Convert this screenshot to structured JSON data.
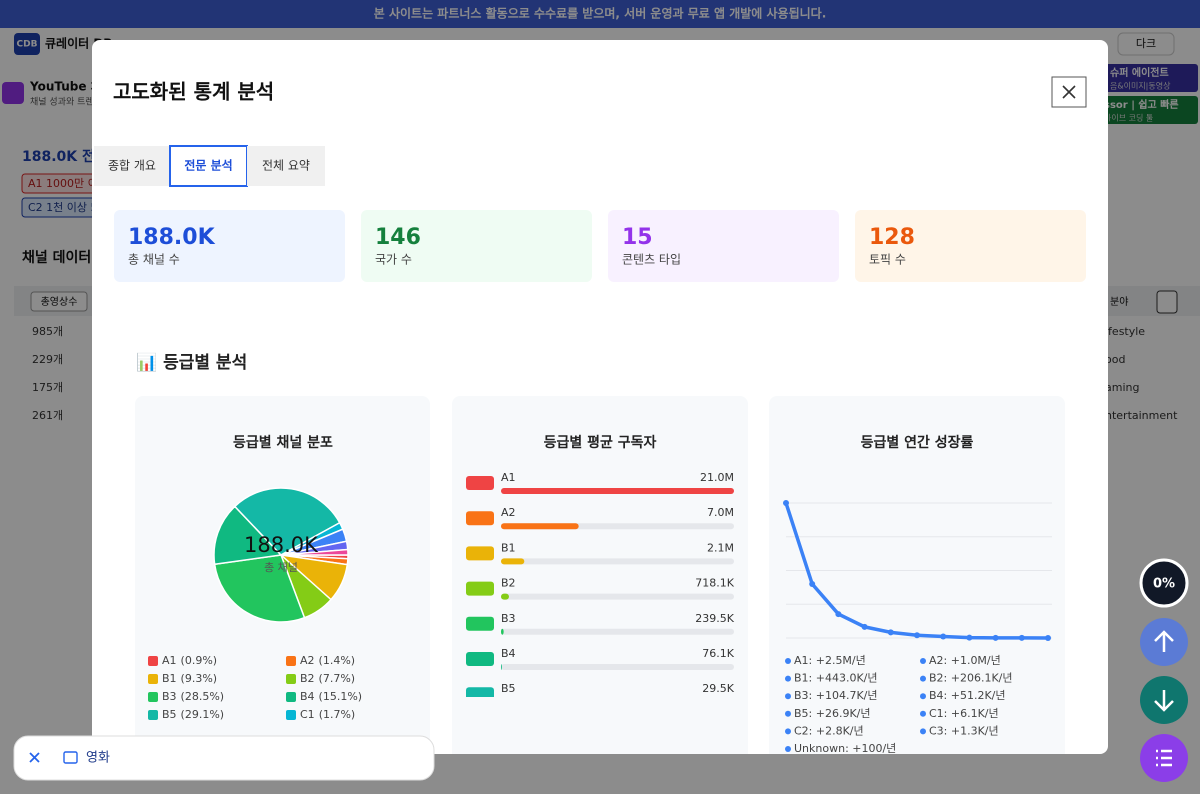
{
  "banner": "본 사이트는 파트너스 활동으로 수수료를 받으며, 서버 운영과 무료 앱 개발에 사용됩니다.",
  "background": {
    "logo": "CDB",
    "site_name": "큐레이터 DB",
    "theme_button": "다크",
    "channel_title": "YouTube 채",
    "channel_sub": "채널 성과와 트렌",
    "total": "188.0K 전체",
    "chip_a1": "A1 1000만 이",
    "chip_c2": "C2 1천 이상 5",
    "section": "채널 데이터",
    "sort_button": "총영상수",
    "field_button": "분야",
    "rows": [
      "985개",
      "229개",
      "175개",
      "261개"
    ],
    "topics": [
      "ifestyle",
      "ood",
      "aming",
      "ntertainment"
    ],
    "ad1_title": "슈퍼 에이전트",
    "ad1_sub": "음&이미지|동영상",
    "ad2_title": "ssor | 쉽고 빠른",
    "ad2_sub": "바이브 코딩 툴"
  },
  "modal": {
    "title": "고도화된 통계 분석",
    "tabs": [
      "종합 개요",
      "전문 분석",
      "전체 요약"
    ],
    "active_tab": 1,
    "stats": [
      {
        "value": "188.0K",
        "label": "총 채널 수"
      },
      {
        "value": "146",
        "label": "국가 수"
      },
      {
        "value": "15",
        "label": "콘텐츠 타입"
      },
      {
        "value": "128",
        "label": "토픽 수"
      }
    ],
    "section_title": "📊 등급별 분석"
  },
  "chart_data": [
    {
      "type": "pie",
      "title": "등급별 채널 분포",
      "center_value": "188.0K",
      "center_label": "총 채널",
      "categories": [
        "A1",
        "A2",
        "B1",
        "B2",
        "B3",
        "B4",
        "B5",
        "C1",
        null,
        null,
        null
      ],
      "values": [
        0.9,
        1.4,
        9.3,
        7.7,
        28.5,
        15.1,
        29.1,
        1.7,
        3.0,
        2.0,
        1.3
      ],
      "value_labels": [
        "(0.9%)",
        "(1.4%)",
        "(9.3%)",
        "(7.7%)",
        "(28.5%)",
        "(15.1%)",
        "(29.1%)",
        "(1.7%)",
        null,
        null,
        null
      ],
      "colors": [
        "#ef4444",
        "#f97316",
        "#eab308",
        "#84cc16",
        "#22c55e",
        "#10b981",
        "#14b8a6",
        "#06b6d4",
        "#3b82f6",
        "#6366f1",
        "#ec4899"
      ]
    },
    {
      "type": "hbar",
      "title": "등급별 평균 구독자",
      "categories": [
        "A1",
        "A2",
        "B1",
        "B2",
        "B3",
        "B4",
        "B5"
      ],
      "values": [
        21000000,
        7000000,
        2100000,
        718100,
        239500,
        76100,
        29500
      ],
      "value_labels": [
        "21.0M",
        "7.0M",
        "2.1M",
        "718.1K",
        "239.5K",
        "76.1K",
        "29.5K"
      ],
      "colors": [
        "#ef4444",
        "#f97316",
        "#eab308",
        "#84cc16",
        "#22c55e",
        "#10b981",
        "#14b8a6"
      ],
      "xlim": [
        0,
        21000000
      ]
    },
    {
      "type": "line",
      "title": "등급별 연간 성장률",
      "values": [
        2500000,
        1000000,
        443000,
        206100,
        104700,
        51200,
        26900,
        6100,
        2800,
        1300,
        100
      ],
      "value_labels": [
        "A1: +2.5M/년",
        "A2: +1.0M/년",
        "B1: +443.0K/년",
        "B2: +206.1K/년",
        "B3: +104.7K/년",
        "B4: +51.2K/년",
        "B5: +26.9K/년",
        "C1: +6.1K/년",
        "C2: +2.8K/년",
        "C3: +1.3K/년",
        "Unknown: +100/년"
      ],
      "color": "#3b82f6",
      "ylim": [
        0,
        2500000
      ],
      "yticks": [
        0,
        625000,
        1250000,
        1875000,
        2500000
      ],
      "grid": true
    }
  ],
  "float_buttons": {
    "progress": "0%"
  },
  "filter_pill": {
    "label": "영화"
  }
}
